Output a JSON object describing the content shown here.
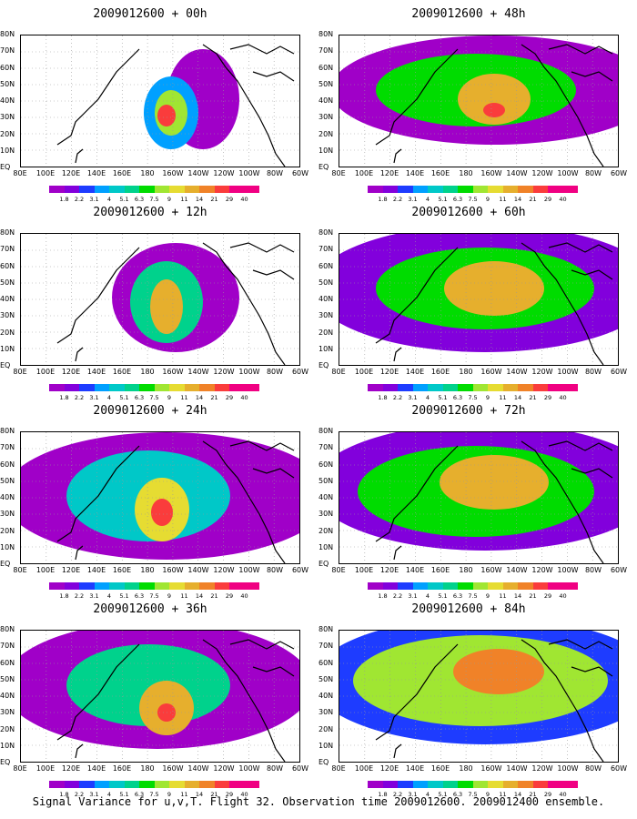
{
  "panels": [
    {
      "title": "2009012600 + 00h"
    },
    {
      "title": "2009012600 + 48h"
    },
    {
      "title": "2009012600 + 12h"
    },
    {
      "title": "2009012600 + 60h"
    },
    {
      "title": "2009012600 + 24h"
    },
    {
      "title": "2009012600 + 72h"
    },
    {
      "title": "2009012600 + 36h"
    },
    {
      "title": "2009012600 + 84h"
    }
  ],
  "axes": {
    "x_ticks": [
      "80E",
      "100E",
      "120E",
      "140E",
      "160E",
      "180",
      "160W",
      "140W",
      "120W",
      "100W",
      "80W",
      "60W"
    ],
    "y_ticks": [
      "80N",
      "70N",
      "60N",
      "50N",
      "40N",
      "30N",
      "20N",
      "10N",
      "EQ"
    ]
  },
  "colorbar": {
    "labels": [
      "1.8",
      "2.2",
      "3.1",
      "4",
      "5.1",
      "6.3",
      "7.5",
      "9",
      "11",
      "14",
      "21",
      "29",
      "40"
    ],
    "colors": [
      "#a000c8",
      "#8200dc",
      "#1e3cff",
      "#00a0ff",
      "#00c8c8",
      "#00d28c",
      "#00dc00",
      "#a0e632",
      "#e6dc32",
      "#e6af2d",
      "#f08228",
      "#fa3c3c",
      "#f00082"
    ]
  },
  "caption": "Signal Variance for u,v,T. Flight 32. Observation time 2009012600. 2009012400 ensemble."
}
